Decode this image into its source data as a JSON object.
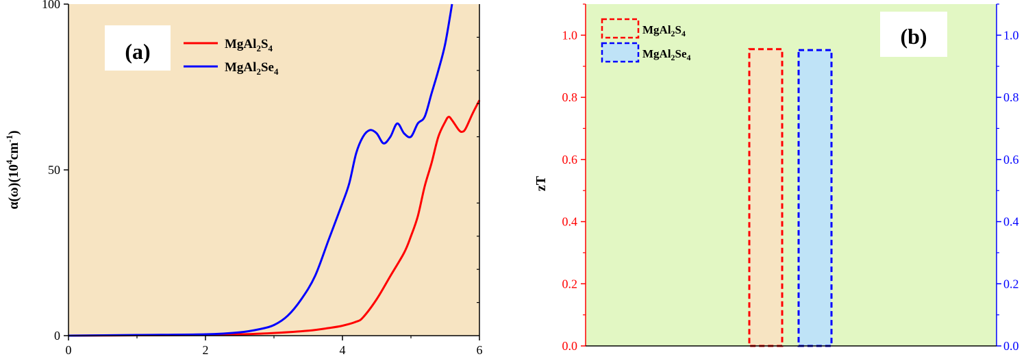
{
  "chart_data": [
    {
      "type": "line",
      "panel_label": "(a)",
      "xlabel": "",
      "ylabel": "α(ω)(10⁴cm⁻¹)",
      "ylabel_parts": {
        "main": "α(ω)(10",
        "sup1": "4",
        "mid": "cm",
        "sup2": "-1",
        "end": ")"
      },
      "xlim": [
        0,
        6
      ],
      "ylim": [
        0,
        100
      ],
      "x_ticks": [
        "0",
        "2",
        "4",
        "6"
      ],
      "y_ticks": [
        "0",
        "50",
        "100"
      ],
      "background": "#f7e4c2",
      "series": [
        {
          "name": "MgAl₂S₄",
          "label_parts": {
            "base": "MgAl",
            "sub1": "2",
            "mid": "S",
            "sub2": "4"
          },
          "color": "#ff0000",
          "x": [
            0,
            1.0,
            2.0,
            2.5,
            3.0,
            3.5,
            3.8,
            4.0,
            4.2,
            4.3,
            4.5,
            4.7,
            4.9,
            5.0,
            5.1,
            5.2,
            5.3,
            5.4,
            5.5,
            5.55,
            5.6,
            5.7,
            5.75,
            5.8,
            5.9,
            6.0
          ],
          "y": [
            0,
            0.1,
            0.2,
            0.4,
            0.8,
            1.5,
            2.3,
            3.0,
            4.2,
            5.5,
            11.0,
            18.0,
            25.0,
            30.0,
            36.0,
            45.0,
            52.0,
            60.0,
            64.5,
            66.0,
            65.0,
            62.0,
            61.5,
            62.5,
            67.0,
            71.0
          ]
        },
        {
          "name": "MgAl₂Se₄",
          "label_parts": {
            "base": "MgAl",
            "sub1": "2",
            "mid": "Se",
            "sub2": "4"
          },
          "color": "#0000ff",
          "x": [
            0,
            1.0,
            2.0,
            2.5,
            2.8,
            3.0,
            3.2,
            3.4,
            3.6,
            3.8,
            4.0,
            4.1,
            4.2,
            4.3,
            4.4,
            4.5,
            4.6,
            4.7,
            4.8,
            4.9,
            5.0,
            5.1,
            5.2,
            5.3,
            5.4,
            5.5,
            5.6
          ],
          "y": [
            0,
            0.2,
            0.4,
            1.0,
            2.0,
            3.2,
            6.0,
            11.0,
            18.0,
            29.0,
            40.0,
            46.0,
            55.0,
            60.0,
            62.0,
            61.0,
            58.0,
            60.0,
            64.0,
            61.0,
            60.0,
            64.0,
            66.0,
            73.0,
            80.0,
            88.0,
            100.0
          ]
        }
      ]
    },
    {
      "type": "bar",
      "panel_label": "(b)",
      "ylabel": "zT",
      "ylim": [
        0,
        1.1
      ],
      "y_ticks_left": [
        "0.0",
        "0.2",
        "0.4",
        "0.6",
        "0.8",
        "1.0"
      ],
      "y_ticks_right": [
        "0.0",
        "0.2",
        "0.4",
        "0.6",
        "0.8",
        "1.0"
      ],
      "left_axis_color": "#ff0000",
      "right_axis_color": "#0000ff",
      "background": "#e2f7c3",
      "series": [
        {
          "name": "MgAl₂S₄",
          "label_parts": {
            "base": "MgAl",
            "sub1": "2",
            "mid": "S",
            "sub2": "4"
          },
          "value": 0.955,
          "edge_color": "#ff0000",
          "fill": "#f7e4c2"
        },
        {
          "name": "MgAl₂Se₄",
          "label_parts": {
            "base": "MgAl",
            "sub1": "2",
            "mid": "Se",
            "sub2": "4"
          },
          "value": 0.952,
          "edge_color": "#0000ff",
          "fill": "#bfe3f7"
        }
      ]
    }
  ]
}
